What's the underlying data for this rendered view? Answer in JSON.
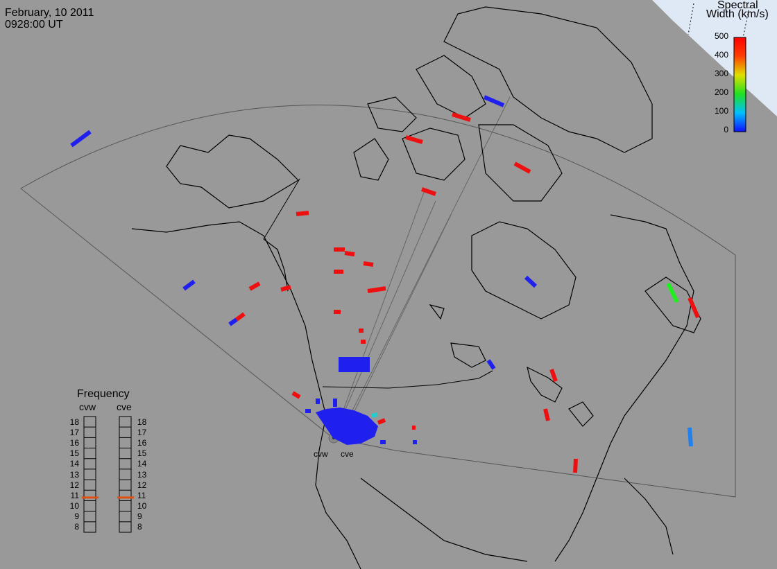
{
  "header": {
    "date": "February, 10 2011",
    "time": "0928:00 UT"
  },
  "colorbar": {
    "title_line1": "Spectral",
    "title_line2": "Width (km/s)",
    "ticks": [
      "500",
      "400",
      "300",
      "200",
      "100",
      "0"
    ],
    "min": 0,
    "max": 500
  },
  "frequency": {
    "title": "Frequency",
    "radars": [
      "cvw",
      "cve"
    ],
    "scale": [
      "18",
      "17",
      "16",
      "15",
      "14",
      "13",
      "12",
      "11",
      "10",
      "9",
      "8"
    ],
    "current": {
      "cvw": 10.8,
      "cve": 10.8
    },
    "indicator_color": "#e05010"
  },
  "radars": {
    "cvw": "cvw",
    "cve": "cve"
  },
  "colors": {
    "background": "#999999",
    "outline": "#000000",
    "fov": "#444444",
    "ice": "#dde8f4"
  }
}
